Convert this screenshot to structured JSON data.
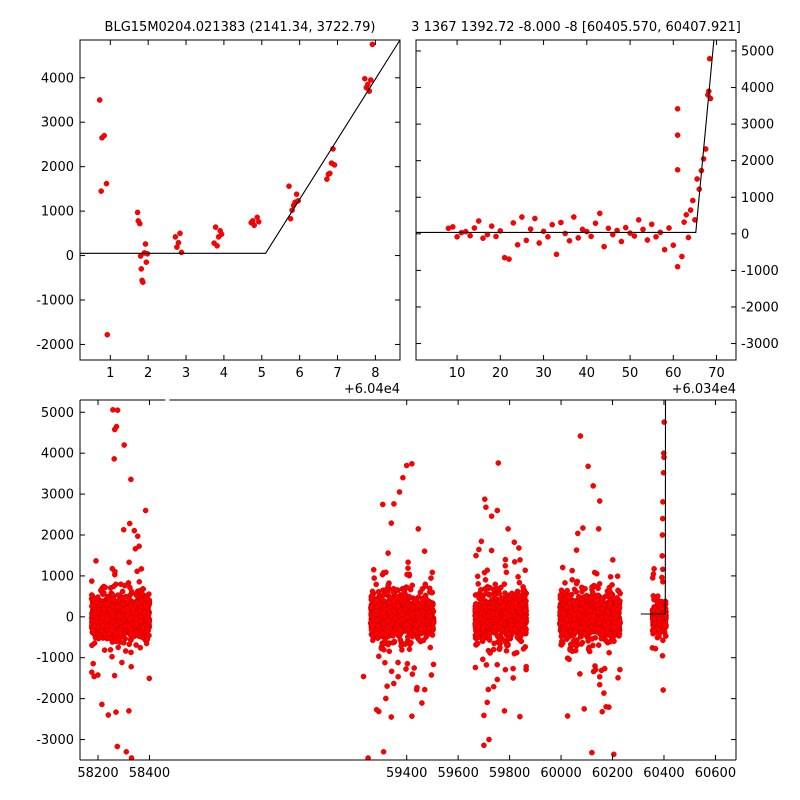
{
  "colors": {
    "point": "#ff0000",
    "model": "#000000",
    "axis": "#000000",
    "background": "#ffffff"
  },
  "chart_data": [
    {
      "type": "scatter",
      "title": "BLG15M0204.021383 (2141.34, 3722.79)",
      "xlabel": "",
      "ylabel": "",
      "x_offset_label": "+6.04e4",
      "xlim": [
        0.2,
        8.65
      ],
      "ylim": [
        -2350,
        4850
      ],
      "xticks": [
        1,
        2,
        3,
        4,
        5,
        6,
        7,
        8
      ],
      "yticks": [
        -2000,
        -1000,
        0,
        1000,
        2000,
        3000,
        4000
      ],
      "y_axis_side": "left",
      "grid": false,
      "legend": "none",
      "points": [
        [
          0.72,
          3500
        ],
        [
          0.78,
          2650
        ],
        [
          0.84,
          2700
        ],
        [
          0.9,
          1620
        ],
        [
          0.76,
          1450
        ],
        [
          0.92,
          -1780
        ],
        [
          1.72,
          970
        ],
        [
          1.74,
          780
        ],
        [
          1.78,
          720
        ],
        [
          1.8,
          -10
        ],
        [
          1.82,
          -300
        ],
        [
          1.84,
          -560
        ],
        [
          1.86,
          -600
        ],
        [
          1.9,
          60
        ],
        [
          1.93,
          260
        ],
        [
          1.95,
          -150
        ],
        [
          1.98,
          40
        ],
        [
          2.72,
          420
        ],
        [
          2.76,
          190
        ],
        [
          2.8,
          290
        ],
        [
          2.84,
          500
        ],
        [
          2.88,
          70
        ],
        [
          3.74,
          280
        ],
        [
          3.78,
          640
        ],
        [
          3.82,
          220
        ],
        [
          3.86,
          420
        ],
        [
          3.9,
          560
        ],
        [
          3.94,
          480
        ],
        [
          4.72,
          740
        ],
        [
          4.76,
          780
        ],
        [
          4.8,
          680
        ],
        [
          4.88,
          860
        ],
        [
          4.92,
          760
        ],
        [
          5.72,
          1560
        ],
        [
          5.76,
          830
        ],
        [
          5.8,
          1020
        ],
        [
          5.84,
          1130
        ],
        [
          5.88,
          1200
        ],
        [
          5.92,
          1380
        ],
        [
          5.96,
          1230
        ],
        [
          6.72,
          1720
        ],
        [
          6.76,
          1830
        ],
        [
          6.8,
          1850
        ],
        [
          6.84,
          2080
        ],
        [
          6.88,
          2400
        ],
        [
          6.92,
          2040
        ],
        [
          7.72,
          3980
        ],
        [
          7.76,
          3780
        ],
        [
          7.8,
          3850
        ],
        [
          7.84,
          3700
        ],
        [
          7.88,
          3950
        ],
        [
          7.92,
          4750
        ]
      ],
      "model_line": [
        [
          0.2,
          50
        ],
        [
          5.1,
          50
        ],
        [
          8.65,
          4850
        ]
      ]
    },
    {
      "type": "scatter",
      "title": "3 1367 1392.72 -8.000 -8 [60405.570, 60407.921]",
      "xlabel": "",
      "ylabel": "",
      "x_offset_label": "+6.034e4",
      "xlim": [
        0.5,
        74.5
      ],
      "ylim": [
        -3450,
        5300
      ],
      "xticks": [
        10,
        20,
        30,
        40,
        50,
        60,
        70
      ],
      "yticks": [
        -3000,
        -2000,
        -1000,
        0,
        1000,
        2000,
        3000,
        4000,
        5000
      ],
      "y_axis_side": "right",
      "grid": false,
      "legend": "none",
      "points": [
        [
          8,
          150
        ],
        [
          9,
          190
        ],
        [
          10,
          -80
        ],
        [
          11,
          30
        ],
        [
          12,
          60
        ],
        [
          13,
          -50
        ],
        [
          14,
          160
        ],
        [
          15,
          350
        ],
        [
          16,
          -120
        ],
        [
          17,
          -20
        ],
        [
          18,
          210
        ],
        [
          19,
          -70
        ],
        [
          20,
          80
        ],
        [
          21,
          -650
        ],
        [
          22,
          -690
        ],
        [
          23,
          300
        ],
        [
          24,
          -300
        ],
        [
          25,
          460
        ],
        [
          26,
          -180
        ],
        [
          27,
          130
        ],
        [
          28,
          420
        ],
        [
          29,
          -250
        ],
        [
          30,
          70
        ],
        [
          31,
          -80
        ],
        [
          32,
          250
        ],
        [
          33,
          -560
        ],
        [
          34,
          310
        ],
        [
          35,
          10
        ],
        [
          36,
          -190
        ],
        [
          37,
          460
        ],
        [
          38,
          -110
        ],
        [
          39,
          120
        ],
        [
          40,
          60
        ],
        [
          41,
          -70
        ],
        [
          42,
          290
        ],
        [
          43,
          560
        ],
        [
          44,
          -350
        ],
        [
          45,
          150
        ],
        [
          46,
          -20
        ],
        [
          47,
          90
        ],
        [
          48,
          -210
        ],
        [
          49,
          170
        ],
        [
          50,
          20
        ],
        [
          51,
          -60
        ],
        [
          52,
          380
        ],
        [
          53,
          120
        ],
        [
          54,
          -170
        ],
        [
          55,
          260
        ],
        [
          56,
          -80
        ],
        [
          57,
          40
        ],
        [
          58,
          -430
        ],
        [
          59,
          160
        ],
        [
          60,
          -310
        ],
        [
          61,
          -900
        ],
        [
          61,
          3420
        ],
        [
          61,
          2700
        ],
        [
          61,
          1750
        ],
        [
          62,
          -620
        ],
        [
          62.5,
          320
        ],
        [
          63,
          520
        ],
        [
          63.5,
          -100
        ],
        [
          64,
          650
        ],
        [
          64.5,
          910
        ],
        [
          65,
          380
        ],
        [
          65.5,
          1500
        ],
        [
          66,
          1220
        ],
        [
          66.5,
          1730
        ],
        [
          67,
          2050
        ],
        [
          67.5,
          2320
        ],
        [
          68,
          3800
        ],
        [
          68.2,
          3900
        ],
        [
          68.4,
          4790
        ],
        [
          68.6,
          3700
        ]
      ],
      "model_line": [
        [
          0.5,
          40
        ],
        [
          65.2,
          40
        ],
        [
          69.4,
          5300
        ]
      ]
    },
    {
      "type": "scatter",
      "title": "",
      "xlabel": "",
      "ylabel": "",
      "xlim": [
        58130,
        60680
      ],
      "ylim": [
        -3500,
        5300
      ],
      "xticks": [
        58200,
        58400,
        59400,
        59600,
        59800,
        60000,
        60200,
        60400,
        60600
      ],
      "yticks": [
        -3000,
        -2000,
        -1000,
        0,
        1000,
        2000,
        3000,
        4000,
        5000
      ],
      "y_axis_side": "left",
      "grid": false,
      "legend": "none",
      "seasons": [
        {
          "start": 58175,
          "end": 58400,
          "std": 420,
          "outliers": [
            [
              58258,
              5060
            ],
            [
              58276,
              5050
            ],
            [
              58265,
              4580
            ],
            [
              58272,
              4650
            ],
            [
              58263,
              3860
            ],
            [
              58302,
              4200
            ],
            [
              58328,
              3360
            ],
            [
              58385,
              2600
            ],
            [
              58300,
              2130
            ],
            [
              58323,
              2280
            ],
            [
              58275,
              -3170
            ],
            [
              58310,
              -3300
            ],
            [
              58330,
              -3450
            ],
            [
              58270,
              -2330
            ],
            [
              58320,
              -2300
            ],
            [
              58240,
              -2400
            ],
            [
              58215,
              -2140
            ],
            [
              58185,
              -1460
            ]
          ]
        },
        {
          "start": 59260,
          "end": 59505,
          "std": 420,
          "outliers": [
            [
              59420,
              3740
            ],
            [
              59400,
              3700
            ],
            [
              59385,
              3400
            ],
            [
              59372,
              3050
            ],
            [
              59350,
              2760
            ],
            [
              59340,
              2290
            ],
            [
              59445,
              2150
            ],
            [
              59310,
              -3300
            ],
            [
              59250,
              -3450
            ],
            [
              59283,
              -2270
            ],
            [
              59340,
              -2450
            ],
            [
              59420,
              -2430
            ],
            [
              59470,
              -1780
            ],
            [
              59232,
              -1460
            ],
            [
              59440,
              -1730
            ]
          ]
        },
        {
          "start": 59665,
          "end": 59865,
          "std": 440,
          "outliers": [
            [
              59756,
              3760
            ],
            [
              59752,
              2600
            ],
            [
              59730,
              2460
            ],
            [
              59708,
              2680
            ],
            [
              59730,
              1620
            ],
            [
              59700,
              -3140
            ],
            [
              59720,
              -3000
            ],
            [
              59700,
              -2410
            ],
            [
              59780,
              -2300
            ],
            [
              59840,
              -2440
            ],
            [
              59667,
              -1240
            ]
          ]
        },
        {
          "start": 59995,
          "end": 60230,
          "std": 440,
          "outliers": [
            [
              60075,
              4420
            ],
            [
              60105,
              3680
            ],
            [
              60125,
              3200
            ],
            [
              60150,
              2830
            ],
            [
              60085,
              2170
            ],
            [
              60065,
              2040
            ],
            [
              60120,
              -3320
            ],
            [
              60205,
              -3360
            ],
            [
              60160,
              -2320
            ],
            [
              60175,
              -2200
            ],
            [
              60090,
              -2250
            ],
            [
              60150,
              -1660
            ]
          ]
        },
        {
          "start": 60355,
          "end": 60408,
          "std": 280,
          "outliers": [
            [
              60401,
              4760
            ],
            [
              60399,
              4000
            ],
            [
              60400,
              3900
            ],
            [
              60398,
              3520
            ],
            [
              60396,
              2810
            ],
            [
              60395,
              2400
            ],
            [
              60394,
              2000
            ],
            [
              60393,
              1490
            ],
            [
              60392,
              960
            ],
            [
              60397,
              -1790
            ],
            [
              60355,
              -760
            ],
            [
              60367,
              -780
            ]
          ]
        }
      ],
      "model_line": [
        [
          60310,
          70
        ],
        [
          60405,
          70
        ],
        [
          60406,
          5300
        ]
      ],
      "axis_break_x": 58470
    }
  ]
}
